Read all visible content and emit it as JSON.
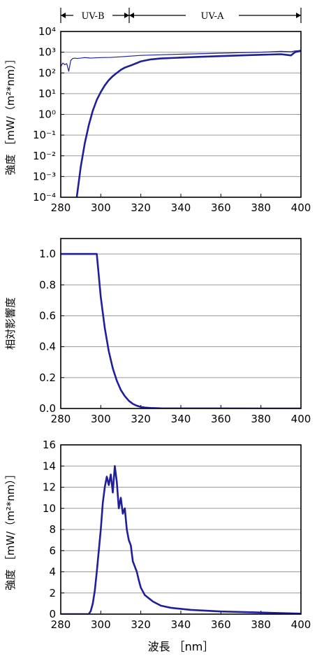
{
  "colors": {
    "series": "#1f1f9a",
    "grid": "#9a9a9a",
    "frame": "#000000"
  },
  "band_labels": {
    "uvb": "UV-B",
    "uva": "UV-A"
  },
  "band_ranges": {
    "uvb": [
      280,
      315
    ],
    "uva": [
      315,
      400
    ]
  },
  "chart_data": [
    {
      "type": "line",
      "yscale": "log",
      "ylabel": "強度 ［mW/（m²*nm）］",
      "xlim": [
        280,
        400
      ],
      "ylim": [
        0.0001,
        10000
      ],
      "xticks": [
        "280",
        "300",
        "320",
        "340",
        "360",
        "380",
        "400"
      ],
      "yticks": [
        "10⁴",
        "10³",
        "10²",
        "10¹",
        "10⁰",
        "10⁻¹",
        "10⁻²",
        "10⁻³",
        "10⁻⁴"
      ],
      "grid": true,
      "series": [
        {
          "style": "thin",
          "x": [
            280,
            281,
            282,
            283,
            284,
            285,
            286,
            287,
            288,
            290,
            292,
            295,
            298,
            300,
            305,
            310,
            315,
            320,
            330,
            340,
            350,
            360,
            370,
            380,
            390,
            395,
            397,
            400
          ],
          "y": [
            200,
            300,
            250,
            280,
            120,
            400,
            500,
            520,
            500,
            520,
            550,
            520,
            540,
            550,
            560,
            600,
            650,
            700,
            750,
            800,
            850,
            900,
            950,
            1000,
            1100,
            1050,
            1150,
            1200
          ]
        },
        {
          "style": "thick",
          "x": [
            288,
            290,
            292,
            294,
            296,
            298,
            300,
            302,
            304,
            306,
            308,
            310,
            312,
            315,
            318,
            320,
            325,
            330,
            340,
            350,
            360,
            370,
            380,
            390,
            395,
            397,
            400
          ],
          "y": [
            0.0001,
            0.003,
            0.04,
            0.3,
            1.5,
            5,
            12,
            25,
            45,
            70,
            100,
            140,
            180,
            230,
            300,
            360,
            450,
            500,
            550,
            600,
            650,
            700,
            750,
            800,
            700,
            1000,
            1200
          ]
        }
      ]
    },
    {
      "type": "line",
      "ylabel": "相対影響度",
      "xlim": [
        280,
        400
      ],
      "ylim": [
        0,
        1.1
      ],
      "xticks": [
        "280",
        "300",
        "320",
        "340",
        "360",
        "380",
        "400"
      ],
      "yticks": [
        "1.0",
        "0.8",
        "0.6",
        "0.4",
        "0.2",
        "0.0"
      ],
      "grid": true,
      "series": [
        {
          "style": "thick",
          "x": [
            280,
            298,
            300,
            302,
            304,
            306,
            308,
            310,
            312,
            314,
            316,
            318,
            320,
            322,
            325,
            330,
            340,
            360,
            400
          ],
          "y": [
            1.0,
            1.0,
            0.72,
            0.52,
            0.37,
            0.26,
            0.18,
            0.12,
            0.08,
            0.05,
            0.03,
            0.018,
            0.01,
            0.006,
            0.003,
            0.001,
            0.0003,
            0.0001,
            0.0
          ]
        }
      ]
    },
    {
      "type": "line",
      "ylabel": "強度 ［mW/（m²*nm）］",
      "xlabel": "波長 ［nm］",
      "xlim": [
        280,
        400
      ],
      "ylim": [
        0,
        16
      ],
      "xticks": [
        "280",
        "300",
        "320",
        "340",
        "360",
        "380",
        "400"
      ],
      "yticks": [
        "16",
        "14",
        "12",
        "10",
        "8",
        "6",
        "4",
        "2",
        "0"
      ],
      "grid": true,
      "series": [
        {
          "style": "thick",
          "x": [
            280,
            294,
            295,
            296,
            297,
            298,
            299,
            300,
            301,
            302,
            303,
            304,
            305,
            306,
            307,
            308,
            309,
            310,
            311,
            312,
            313,
            314,
            315,
            316,
            317,
            318,
            319,
            320,
            322,
            324,
            326,
            328,
            330,
            335,
            340,
            345,
            350,
            360,
            370,
            380,
            390,
            400
          ],
          "y": [
            0,
            0,
            0.3,
            1.0,
            2.2,
            4.0,
            6.0,
            8.0,
            10.5,
            12.0,
            13.0,
            12.2,
            13.2,
            11.5,
            14.0,
            12.5,
            10.0,
            11.0,
            9.5,
            10.0,
            8.0,
            7.0,
            6.5,
            5.0,
            4.5,
            4.0,
            3.2,
            2.5,
            1.8,
            1.5,
            1.2,
            1.0,
            0.8,
            0.6,
            0.5,
            0.4,
            0.35,
            0.25,
            0.2,
            0.15,
            0.1,
            0.05
          ]
        }
      ]
    }
  ]
}
